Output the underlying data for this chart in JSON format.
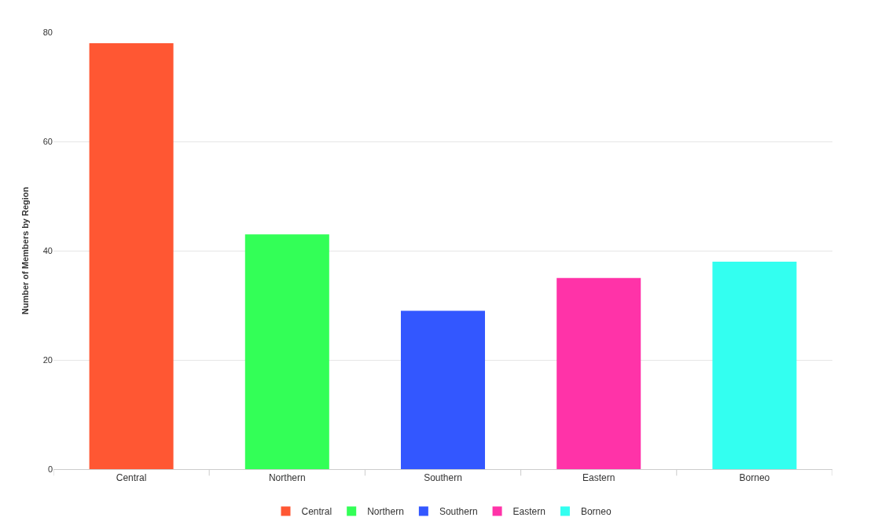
{
  "chart_data": {
    "type": "bar",
    "ylabel": "Number of Members by Region",
    "categories": [
      "Central",
      "Northern",
      "Southern",
      "Eastern",
      "Borneo"
    ],
    "series": [
      {
        "name": "Central",
        "color": "#ff5733",
        "values": [
          78,
          null,
          null,
          null,
          null
        ]
      },
      {
        "name": "Northern",
        "color": "#33ff57",
        "values": [
          null,
          43,
          null,
          null,
          null
        ]
      },
      {
        "name": "Southern",
        "color": "#3357ff",
        "values": [
          null,
          null,
          29,
          null,
          null
        ]
      },
      {
        "name": "Eastern",
        "color": "#ff33a8",
        "values": [
          null,
          null,
          null,
          35,
          null
        ]
      },
      {
        "name": "Borneo",
        "color": "#33fff0",
        "values": [
          null,
          null,
          null,
          null,
          38
        ]
      }
    ],
    "ylim": [
      0,
      80
    ],
    "yticks": [
      0,
      20,
      40,
      60,
      80
    ],
    "grid": "y",
    "legend": "bottom"
  }
}
